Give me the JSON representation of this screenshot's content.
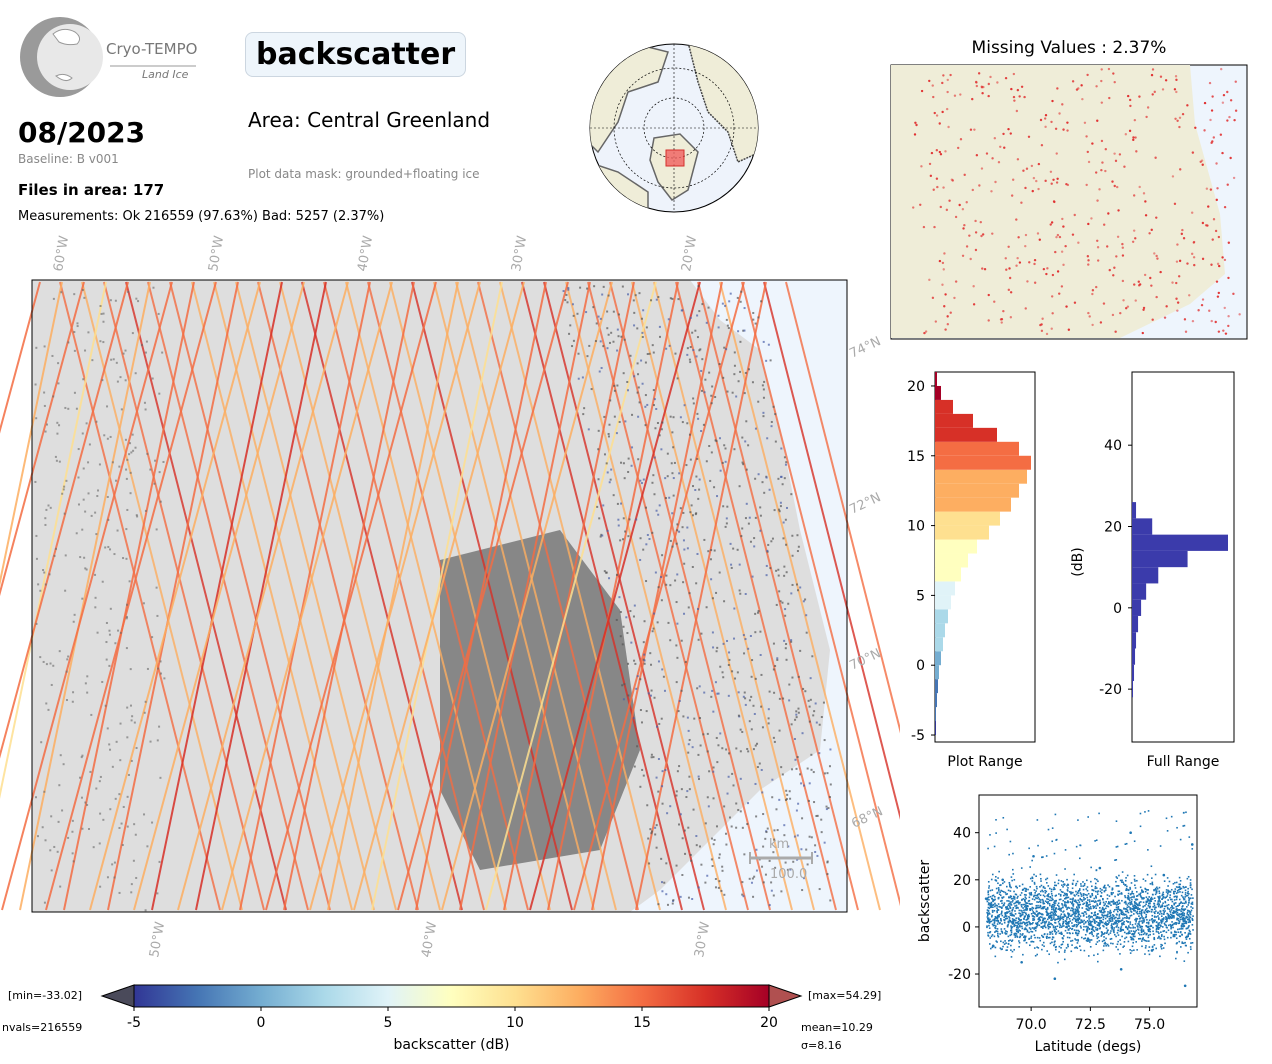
{
  "logo": {
    "line1": "Cryo-TEMPO",
    "line2": "Land Ice"
  },
  "header": {
    "date": "08/2023",
    "baseline": "Baseline: B v001",
    "files": "Files in area: 177",
    "measurements": "Measurements: Ok 216559 (97.63%) Bad: 5257 (2.37%)",
    "parameter": "backscatter",
    "area": "Area: Central Greenland",
    "mask": "Plot data mask: grounded+floating ice"
  },
  "colors": {
    "ice_bg": "#eef5fd",
    "land": "#efedd8",
    "hist_full": "#3b3bab",
    "scatter": "#1f77b4",
    "missing": "#e03030",
    "cmap": [
      "#313695",
      "#4575b4",
      "#74add1",
      "#abd9e9",
      "#e0f3f8",
      "#ffffbf",
      "#fee090",
      "#fdae61",
      "#f46d43",
      "#d73027",
      "#a50026"
    ]
  },
  "main_map": {
    "lon_labels_top": [
      "60°W",
      "50°W",
      "40°W",
      "30°W",
      "20°W"
    ],
    "lon_labels_bottom": [
      "50°W",
      "40°W",
      "30°W"
    ],
    "lat_labels": [
      "74°N",
      "72°N",
      "70°N",
      "68°N"
    ],
    "scale_unit": "km",
    "scale_value": "100.0"
  },
  "missing_panel": {
    "title": "Missing Values : 2.37%"
  },
  "chart_data": [
    {
      "type": "bar",
      "name": "Plot Range",
      "orientation": "horizontal",
      "xlabel": "Plot Range",
      "ylim": [
        -5.5,
        21
      ],
      "yticks": [
        -5,
        0,
        5,
        10,
        15,
        20
      ],
      "bins": [
        -5,
        -4,
        -3,
        -2,
        -1,
        0,
        1,
        2,
        3,
        4,
        5,
        6,
        7,
        8,
        9,
        10,
        11,
        12,
        13,
        14,
        15,
        16,
        17,
        18,
        19,
        20
      ],
      "values": [
        1,
        1,
        2,
        3,
        4,
        6,
        8,
        10,
        13,
        16,
        20,
        26,
        33,
        42,
        54,
        65,
        76,
        84,
        92,
        96,
        84,
        62,
        38,
        18,
        6,
        2
      ]
    },
    {
      "type": "bar",
      "name": "Full Range",
      "orientation": "horizontal",
      "xlabel": "Full Range",
      "ylabel": "(dB)",
      "ylim": [
        -33,
        58
      ],
      "yticks": [
        -20,
        0,
        20,
        40
      ],
      "bins": [
        -22,
        -18,
        -14,
        -10,
        -6,
        -2,
        2,
        6,
        10,
        14,
        18,
        22
      ],
      "values": [
        1,
        2,
        3,
        4,
        6,
        9,
        14,
        26,
        55,
        95,
        20,
        4
      ]
    },
    {
      "type": "scatter",
      "xlabel": "Latitude (degs)",
      "ylabel": "backscatter",
      "xlim": [
        67.8,
        77.0
      ],
      "ylim": [
        -34,
        56
      ],
      "xticks": [
        70.0,
        72.5,
        75.0
      ],
      "xtick_labels": [
        "70.0",
        "72.5",
        "75.0"
      ],
      "yticks": [
        -20,
        0,
        20,
        40
      ],
      "points": [
        [
          68.1,
          12
        ],
        [
          68.4,
          -8
        ],
        [
          68.8,
          20
        ],
        [
          69.2,
          5
        ],
        [
          69.6,
          -15
        ],
        [
          70.1,
          30
        ],
        [
          70.5,
          8
        ],
        [
          71.0,
          -22
        ],
        [
          71.4,
          18
        ],
        [
          71.9,
          3
        ],
        [
          72.4,
          -5
        ],
        [
          72.9,
          25
        ],
        [
          73.3,
          10
        ],
        [
          73.8,
          -18
        ],
        [
          74.2,
          40
        ],
        [
          74.7,
          15
        ],
        [
          75.1,
          -10
        ],
        [
          75.6,
          22
        ],
        [
          76.0,
          6
        ],
        [
          76.5,
          -25
        ],
        [
          76.8,
          35
        ]
      ]
    },
    {
      "type": "colorbar",
      "label": "backscatter (dB)",
      "range": [
        -5,
        20
      ],
      "ticks": [
        -5,
        0,
        5,
        10,
        15,
        20
      ],
      "min_label": "[min=-33.02]",
      "max_label": "[max=54.29]",
      "nvals_label": "nvals=216559",
      "mean_label": "mean=10.29",
      "sigma_label": "σ=8.16"
    }
  ]
}
